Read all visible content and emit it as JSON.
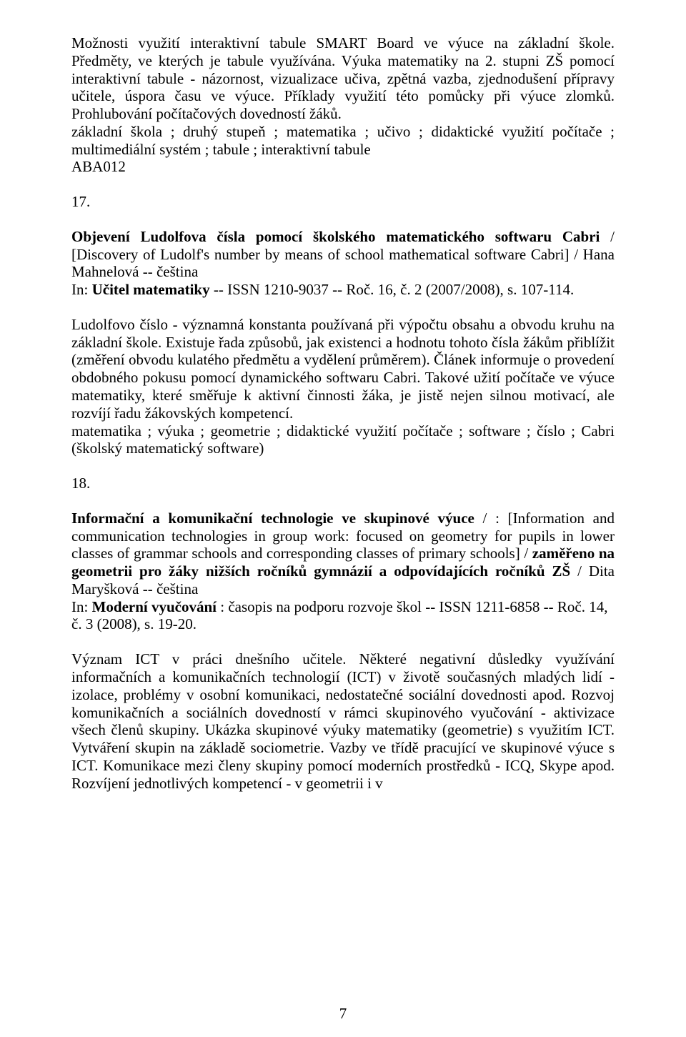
{
  "page": {
    "number": "7",
    "font_family": "Times New Roman",
    "font_size_pt": 16,
    "text_color": "#000000",
    "background_color": "#ffffff"
  },
  "entry16": {
    "p1": "Možnosti využití interaktivní tabule SMART Board ve výuce na základní škole. Předměty, ve kterých je tabule využívána. Výuka matematiky na 2. stupni ZŠ pomocí interaktivní tabule - názornost, vizualizace učiva, zpětná vazba, zjednodušení přípravy učitele, úspora času ve výuce. Příklady využití této pomůcky při výuce zlomků. Prohlubování počítačových dovedností žáků.",
    "keywords": "základní škola ; druhý stupeň ; matematika ; učivo ; didaktické využití počítače ; multimediální systém ; tabule ; interaktivní tabule",
    "code": "ABA012"
  },
  "entry17": {
    "num": "17.",
    "title_bold": "Objevení Ludolfova čísla pomocí školského matematického softwaru Cabri",
    "title_rest": " / [Discovery of Ludolf's number by means of school mathematical software Cabri] / Hana Mahnelová -- čeština",
    "in_prefix": "In: ",
    "in_bold": "Učitel matematiky",
    "in_rest": " -- ISSN 1210-9037 -- Roč. 16, č. 2 (2007/2008), s. 107-114.",
    "abstract": "Ludolfovo číslo - významná konstanta používaná při výpočtu obsahu a obvodu kruhu na základní škole. Existuje řada způsobů, jak existenci a hodnotu tohoto čísla žákům přiblížit (změření obvodu kulatého předmětu a vydělení průměrem). Článek informuje o provedení obdobného pokusu pomocí dynamického softwaru Cabri. Takové užití počítače ve výuce matematiky, které směřuje k aktivní činnosti žáka, je jistě nejen silnou motivací, ale rozvíjí řadu žákovských kompetencí.",
    "keywords": "matematika ; výuka ; geometrie ; didaktické využití počítače ; software ; číslo ; Cabri (školský matematický software)"
  },
  "entry18": {
    "num": "18.",
    "title_bold1": "Informační a komunikační technologie ve skupinové výuce",
    "title_mid": " / : [Information and communication technologies in group work: focused on geometry for pupils in lower classes of grammar schools and corresponding classes of primary schools] / ",
    "title_bold2": "zaměřeno na geometrii pro žáky nižších ročníků gymnázií a odpovídajících ročníků ZŠ",
    "title_rest": " / Dita Maryšková -- čeština",
    "in_prefix": "In: ",
    "in_bold": "Moderní vyučování",
    "in_rest": " : časopis na podporu rozvoje škol -- ISSN 1211-6858 -- Roč. 14, č. 3 (2008), s. 19-20.",
    "abstract": "Význam ICT v práci dnešního učitele. Některé negativní důsledky využívání informačních a komunikačních technologií (ICT) v životě současných mladých lidí - izolace, problémy v osobní komunikaci, nedostatečné sociální dovednosti apod. Rozvoj komunikačních a sociálních dovedností v rámci skupinového vyučování - aktivizace všech členů skupiny. Ukázka skupinové výuky matematiky (geometrie) s využitím ICT. Vytváření skupin na základě sociometrie. Vazby ve třídě pracující ve skupinové výuce s ICT. Komunikace mezi členy skupiny pomocí moderních prostředků - ICQ, Skype apod. Rozvíjení jednotlivých kompetencí - v geometrii i v"
  }
}
